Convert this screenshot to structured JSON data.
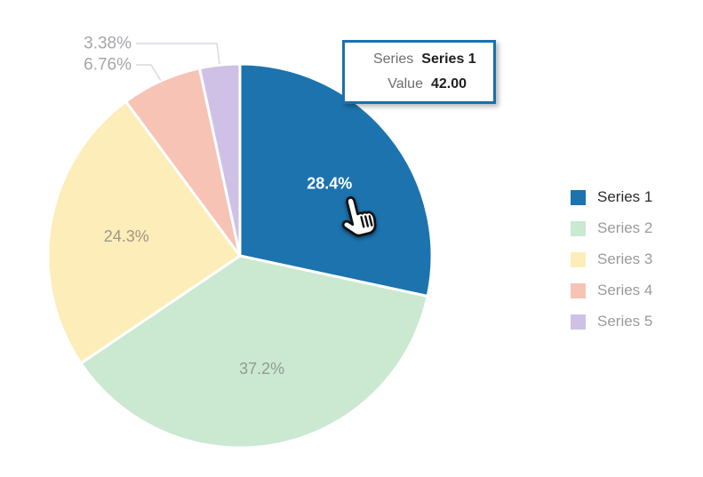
{
  "chart_data": {
    "type": "pie",
    "title": "",
    "legend_position": "right",
    "slices": [
      {
        "name": "Series 1",
        "value": 42,
        "pct_label": "28.4%",
        "color": "#1c73ae",
        "label_placement": "inside",
        "label_color": "#ffffff",
        "label_bold": true,
        "active": true
      },
      {
        "name": "Series 2",
        "value": 55,
        "pct_label": "37.2%",
        "color": "#cbe8d1",
        "label_placement": "inside",
        "label_color": "#8f9c92",
        "label_bold": false,
        "active": false
      },
      {
        "name": "Series 3",
        "value": 36,
        "pct_label": "24.3%",
        "color": "#fdedb8",
        "label_placement": "inside",
        "label_color": "#9d978a",
        "label_bold": false,
        "active": false
      },
      {
        "name": "Series 4",
        "value": 10,
        "pct_label": "6.76%",
        "color": "#f7c3b5",
        "label_placement": "outside",
        "label_color": "#a6a6ab",
        "label_bold": false,
        "active": false
      },
      {
        "name": "Series 5",
        "value": 5,
        "pct_label": "3.38%",
        "color": "#cfc1e6",
        "label_placement": "outside",
        "label_color": "#a6a6ab",
        "label_bold": false,
        "active": false
      }
    ],
    "start_angle_deg": 0,
    "direction": "clockwise",
    "tooltip": {
      "rows": [
        {
          "label": "Series",
          "value": "Series 1"
        },
        {
          "label": "Value",
          "value": "42.00"
        }
      ],
      "border_color": "#1a70ad"
    },
    "legend": {
      "active_text_color": "#2b2b2b",
      "inactive_text_color": "#9b9b9b"
    },
    "leader_line_color": "#d9d9e2"
  }
}
